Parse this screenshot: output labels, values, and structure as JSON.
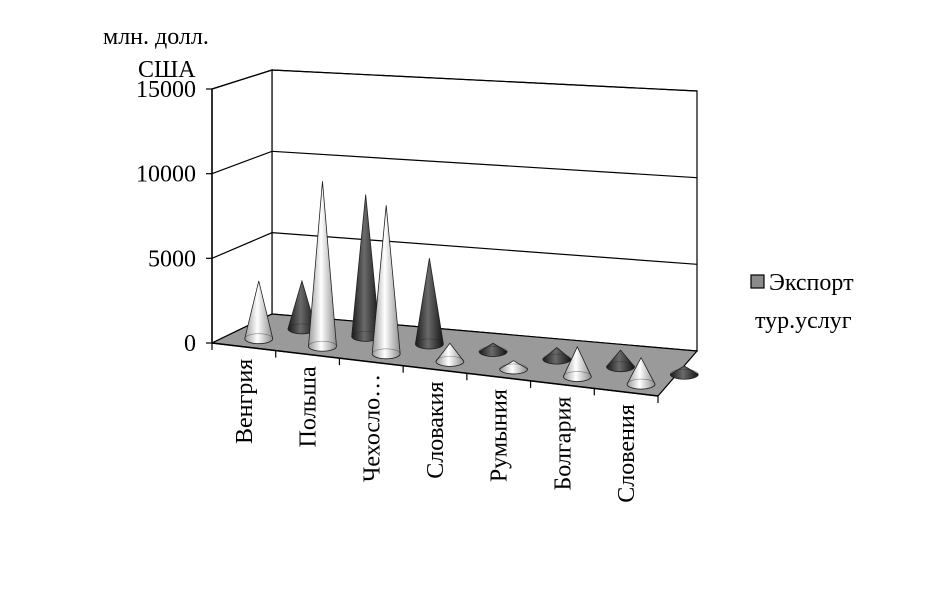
{
  "chart_data": {
    "type": "bar",
    "subtype": "3d-cone",
    "ylabel_line1": "млн. долл.",
    "ylabel_line2": "США",
    "ylim": [
      0,
      15000
    ],
    "yticks": [
      "0",
      "5000",
      "10000",
      "15000"
    ],
    "categories": [
      "Венгрия",
      "Польша",
      "Чехосло…",
      "Словакия",
      "Румыния",
      "Болгария",
      "Словения"
    ],
    "series": [
      {
        "values": [
          3500,
          10000,
          9000,
          1100,
          500,
          1800,
          1600
        ]
      },
      {
        "name": "Экспорт тур.услуг",
        "values": [
          2900,
          8600,
          5200,
          500,
          700,
          1000,
          500
        ]
      }
    ],
    "legend": {
      "position": "right",
      "line1": "Экспорт",
      "line2": "тур.услуг"
    },
    "colors": {
      "series1": "#d2d2d2",
      "series2": "#3a3a3a",
      "floor": "#9a9a9a",
      "grid": "#000000"
    }
  }
}
